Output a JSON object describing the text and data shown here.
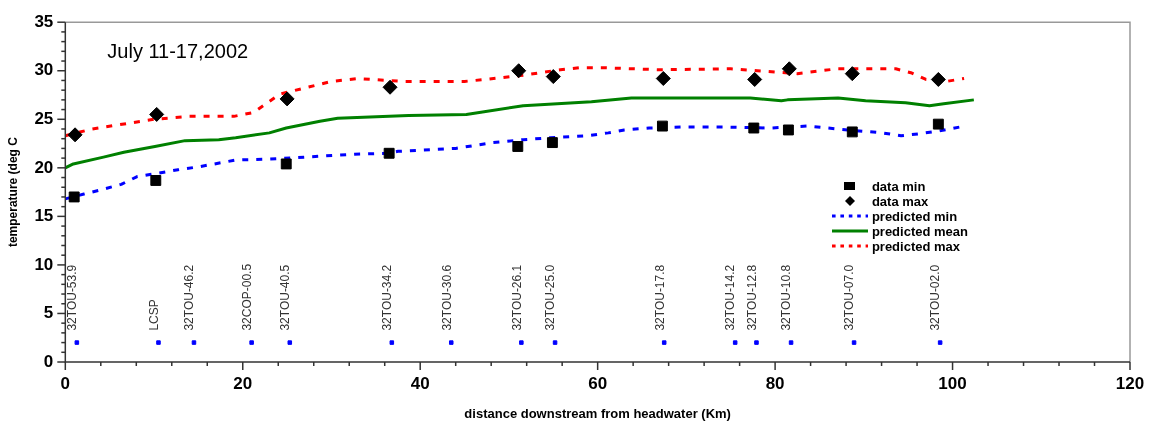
{
  "chart_data": {
    "type": "line",
    "title": "July 11-17,2002",
    "xlabel": "distance downstream from headwater (Km)",
    "ylabel": "temperature (deg C",
    "xlim": [
      0,
      120
    ],
    "xticks": [
      0,
      20,
      40,
      60,
      80,
      100,
      120
    ],
    "ylim": [
      0,
      35
    ],
    "yticks": [
      0,
      5,
      10,
      15,
      20,
      25,
      30,
      35
    ],
    "grid": false,
    "legend": "right",
    "series": [
      {
        "name": "data min",
        "type": "scatter",
        "marker": "square",
        "color": "#000000",
        "x": [
          1,
          10.2,
          24.9,
          36.5,
          51,
          54.9,
          67.3,
          77.6,
          81.5,
          88.7,
          98.4
        ],
        "values": [
          17,
          18.7,
          20.4,
          21.5,
          22.2,
          22.6,
          24.3,
          24.1,
          23.9,
          23.7,
          24.5
        ]
      },
      {
        "name": "data max",
        "type": "scatter",
        "marker": "diamond",
        "color": "#000000",
        "x": [
          1.1,
          10.3,
          25,
          36.6,
          51.1,
          55,
          67.4,
          77.7,
          81.6,
          88.7,
          98.4
        ],
        "values": [
          23.4,
          25.5,
          27.1,
          28.3,
          30,
          29.4,
          29.2,
          29.1,
          30.2,
          29.7,
          29.1
        ]
      },
      {
        "name": "predicted min",
        "type": "line",
        "line_style": "dashed",
        "color": "#0000ff",
        "x": [
          0,
          2.1,
          4.3,
          6.3,
          8.1,
          10.1,
          12.7,
          15,
          19.2,
          23,
          26.9,
          32.6,
          36.4,
          37.5,
          44,
          48.2,
          51.6,
          54.7,
          58.9,
          61.2,
          63,
          65.8,
          69.6,
          74.5,
          79.5,
          81.4,
          83.6,
          88.2,
          92.1,
          94.2,
          96.2,
          98.5,
          100.8
        ],
        "values": [
          16.8,
          17.3,
          17.8,
          18.3,
          19.1,
          19.4,
          19.8,
          20.1,
          20.8,
          20.9,
          21.1,
          21.4,
          21.5,
          21.7,
          22,
          22.6,
          22.9,
          23.1,
          23.3,
          23.6,
          23.9,
          24.1,
          24.2,
          24.2,
          24.1,
          24.2,
          24.3,
          23.9,
          23.6,
          23.3,
          23.5,
          23.8,
          24.2
        ]
      },
      {
        "name": "predicted mean",
        "type": "line",
        "line_style": "solid",
        "color": "#008000",
        "x": [
          0,
          0.9,
          4.3,
          6.6,
          10.1,
          13.5,
          17.3,
          19.2,
          23,
          24.9,
          28.7,
          30.7,
          38.7,
          45.2,
          51.6,
          59.3,
          63.8,
          77.2,
          80.7,
          81.4,
          87.1,
          90.2,
          94.7,
          97.4,
          99,
          102.4
        ],
        "values": [
          20,
          20.4,
          21.1,
          21.6,
          22.2,
          22.8,
          22.9,
          23.1,
          23.6,
          24.1,
          24.8,
          25.1,
          25.4,
          25.5,
          26.4,
          26.8,
          27.2,
          27.2,
          26.9,
          27,
          27.2,
          26.9,
          26.7,
          26.4,
          26.6,
          27
        ]
      },
      {
        "name": "predicted max",
        "type": "line",
        "line_style": "dashed",
        "color": "#ff0000",
        "x": [
          0,
          3,
          10,
          14,
          19,
          21.2,
          24.2,
          30,
          33,
          38,
          45,
          47.3,
          51.3,
          55.8,
          57.9,
          61,
          67,
          75,
          78,
          82.5,
          87,
          89.4,
          93.6,
          95.3,
          97,
          99.3,
          101.3
        ],
        "values": [
          23.3,
          24,
          25,
          25.3,
          25.3,
          25.7,
          27.6,
          28.9,
          29.2,
          28.9,
          28.9,
          29.1,
          29.5,
          30.1,
          30.3,
          30.3,
          30.1,
          30.2,
          30,
          29.7,
          30.2,
          30.2,
          30.2,
          29.8,
          29.1,
          28.9,
          29.2
        ]
      },
      {
        "type": "scatter",
        "marker": "square",
        "color": "#0000ff",
        "x": [
          1.3,
          10.5,
          14.5,
          21,
          25.3,
          36.8,
          43.5,
          51.4,
          55.2,
          67.5,
          75.5,
          77.9,
          81.8,
          88.9,
          98.6
        ],
        "values": [
          2,
          2,
          2,
          2,
          2,
          2,
          2,
          2,
          2,
          2,
          2,
          2,
          2,
          2,
          2
        ]
      }
    ],
    "annotations": [
      {
        "text": "32TOU-53.9",
        "x": 1.3,
        "y": 2
      },
      {
        "text": "LCSP",
        "x": 10.5,
        "y": 2
      },
      {
        "text": "32TOU-46.2",
        "x": 14.5,
        "y": 2
      },
      {
        "text": "32COP-00.5",
        "x": 21,
        "y": 2
      },
      {
        "text": "32TOU-40.5",
        "x": 25.3,
        "y": 2
      },
      {
        "text": "32TOU-34.2",
        "x": 36.8,
        "y": 2
      },
      {
        "text": "32TOU-30.6",
        "x": 43.5,
        "y": 2
      },
      {
        "text": "32TOU-26.1",
        "x": 51.4,
        "y": 2
      },
      {
        "text": "32TOU-25.0",
        "x": 55.2,
        "y": 2
      },
      {
        "text": "32TOU-17.8",
        "x": 67.5,
        "y": 2
      },
      {
        "text": "32TOU-14.2",
        "x": 75.5,
        "y": 2
      },
      {
        "text": "32TOU-12.8",
        "x": 77.9,
        "y": 2
      },
      {
        "text": "32TOU-10.8",
        "x": 81.8,
        "y": 2
      },
      {
        "text": "32TOU-07.0",
        "x": 88.9,
        "y": 2
      },
      {
        "text": "32TOU-02.0",
        "x": 98.6,
        "y": 2
      }
    ]
  }
}
